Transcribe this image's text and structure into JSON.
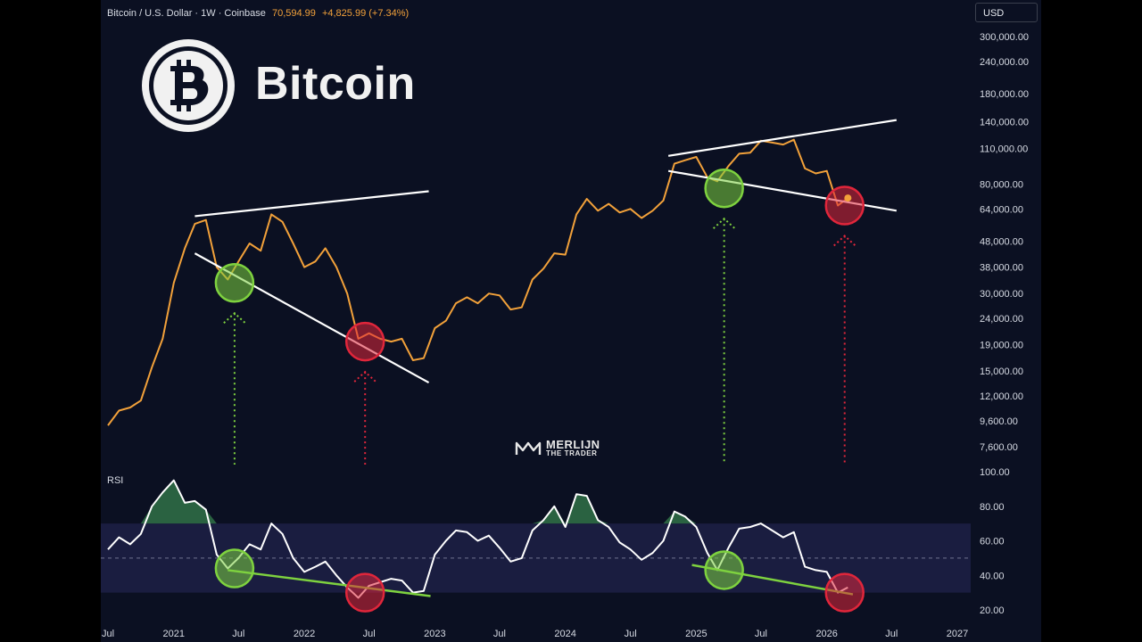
{
  "header": {
    "symbol": "Bitcoin / U.S. Dollar · 1W · Coinbase",
    "price": "70,594.99",
    "change": "+4,825.99 (+7.34%)"
  },
  "currency_button": "USD",
  "logo": {
    "name": "Bitcoin",
    "icon": "bitcoin-icon"
  },
  "watermark": {
    "line1": "MERLIJN",
    "line2": "THE TRADER"
  },
  "rsi_panel": {
    "label": "RSI"
  },
  "colors": {
    "background": "#0b1022",
    "price_line": "#f2a13a",
    "rsi_line": "#ffffff",
    "trendline": "#ffffff",
    "rsi_trendline": "#7ed23f",
    "bull_circle": "#7ed23f",
    "bear_circle": "#e0263b",
    "rsi_band": "#1d2045"
  },
  "chart_data": [
    {
      "type": "line",
      "title": "Bitcoin / U.S. Dollar · 1W · Coinbase",
      "y_scale": "log",
      "y_ticks": [
        "300,000.00",
        "240,000.00",
        "180,000.00",
        "140,000.00",
        "110,000.00",
        "80,000.00",
        "64,000.00",
        "48,000.00",
        "38,000.00",
        "30,000.00",
        "24,000.00",
        "19,000.00",
        "15,000.00",
        "12,000.00",
        "9,600.00",
        "7,600.00"
      ],
      "y_tick_values": [
        300000,
        240000,
        180000,
        140000,
        110000,
        80000,
        64000,
        48000,
        38000,
        30000,
        24000,
        19000,
        15000,
        12000,
        9600,
        7600
      ],
      "x_ticks": [
        "Jul",
        "2021",
        "Jul",
        "2022",
        "Jul",
        "2023",
        "Jul",
        "2024",
        "Jul",
        "2025",
        "Jul",
        "2026",
        "Jul",
        "2027"
      ],
      "x_tick_dates": [
        "2020-07-01",
        "2021-01-01",
        "2021-07-01",
        "2022-01-01",
        "2022-07-01",
        "2023-01-01",
        "2023-07-01",
        "2024-01-01",
        "2024-07-01",
        "2025-01-01",
        "2025-07-01",
        "2026-01-01",
        "2026-07-01",
        "2027-01-01"
      ],
      "series": [
        {
          "x": [
            "2020-07-01",
            "2020-08-01",
            "2020-09-01",
            "2020-10-01",
            "2020-11-01",
            "2020-12-01",
            "2021-01-01",
            "2021-02-01",
            "2021-03-01",
            "2021-04-01",
            "2021-05-01",
            "2021-06-01",
            "2021-07-01",
            "2021-08-01",
            "2021-09-01",
            "2021-10-01",
            "2021-11-01",
            "2021-12-01",
            "2022-01-01",
            "2022-02-01",
            "2022-03-01",
            "2022-04-01",
            "2022-05-01",
            "2022-06-01",
            "2022-07-01",
            "2022-08-01",
            "2022-09-01",
            "2022-10-01",
            "2022-11-01",
            "2022-12-01",
            "2023-01-01",
            "2023-02-01",
            "2023-03-01",
            "2023-04-01",
            "2023-05-01",
            "2023-06-01",
            "2023-07-01",
            "2023-08-01",
            "2023-09-01",
            "2023-10-01",
            "2023-11-01",
            "2023-12-01",
            "2024-01-01",
            "2024-02-01",
            "2024-03-01",
            "2024-04-01",
            "2024-05-01",
            "2024-06-01",
            "2024-07-01",
            "2024-08-01",
            "2024-09-01",
            "2024-10-01",
            "2024-11-01",
            "2024-12-01",
            "2025-01-01",
            "2025-02-01",
            "2025-03-01",
            "2025-04-01",
            "2025-05-01",
            "2025-06-01",
            "2025-07-01",
            "2025-08-01",
            "2025-09-01",
            "2025-10-01",
            "2025-11-01",
            "2025-12-01",
            "2026-01-01",
            "2026-02-01",
            "2026-03-01"
          ],
          "values": [
            9200,
            10500,
            10800,
            11500,
            15500,
            20000,
            33000,
            45000,
            56000,
            58000,
            38000,
            34000,
            40000,
            47000,
            44000,
            61000,
            57000,
            47000,
            38000,
            40000,
            45000,
            38000,
            30000,
            20000,
            21000,
            20000,
            19500,
            20000,
            16500,
            16800,
            22000,
            23500,
            27500,
            29000,
            27500,
            30000,
            29500,
            26000,
            26500,
            34000,
            37500,
            43000,
            42500,
            61000,
            70000,
            63000,
            67000,
            62000,
            64000,
            59000,
            63000,
            69000,
            96000,
            99000,
            102000,
            85000,
            82000,
            94000,
            105000,
            106000,
            118000,
            116000,
            114000,
            119000,
            92000,
            88000,
            90000,
            66000,
            70595
          ],
          "color": "#f2a13a"
        }
      ],
      "trendlines": [
        {
          "from": [
            "2021-03-01",
            60000
          ],
          "to": [
            "2022-12-15",
            75000
          ]
        },
        {
          "from": [
            "2021-03-01",
            43000
          ],
          "to": [
            "2022-12-15",
            13500
          ]
        },
        {
          "from": [
            "2024-10-15",
            103000
          ],
          "to": [
            "2026-07-15",
            142000
          ]
        },
        {
          "from": [
            "2024-10-15",
            90000
          ],
          "to": [
            "2026-07-15",
            63000
          ]
        }
      ],
      "markers": [
        {
          "kind": "bull",
          "x": "2021-06-20",
          "y": 33000
        },
        {
          "kind": "bear",
          "x": "2022-06-20",
          "y": 19500
        },
        {
          "kind": "bull",
          "x": "2025-03-20",
          "y": 77000
        },
        {
          "kind": "bear",
          "x": "2026-02-20",
          "y": 66000
        }
      ],
      "current_price": 70595
    },
    {
      "type": "line",
      "title": "RSI",
      "ylim": [
        18,
        103
      ],
      "y_ticks": [
        "100.00",
        "80.00",
        "60.00",
        "40.00",
        "20.00"
      ],
      "y_tick_values": [
        100,
        80,
        60,
        40,
        20
      ],
      "band": [
        30,
        70
      ],
      "midline": 50,
      "series": [
        {
          "x": [
            "2020-07-01",
            "2020-08-01",
            "2020-09-01",
            "2020-10-01",
            "2020-11-01",
            "2020-12-01",
            "2021-01-01",
            "2021-02-01",
            "2021-03-01",
            "2021-04-01",
            "2021-05-01",
            "2021-06-01",
            "2021-07-01",
            "2021-08-01",
            "2021-09-01",
            "2021-10-01",
            "2021-11-01",
            "2021-12-01",
            "2022-01-01",
            "2022-02-01",
            "2022-03-01",
            "2022-04-01",
            "2022-05-01",
            "2022-06-01",
            "2022-07-01",
            "2022-08-01",
            "2022-09-01",
            "2022-10-01",
            "2022-11-01",
            "2022-12-01",
            "2023-01-01",
            "2023-02-01",
            "2023-03-01",
            "2023-04-01",
            "2023-05-01",
            "2023-06-01",
            "2023-07-01",
            "2023-08-01",
            "2023-09-01",
            "2023-10-01",
            "2023-11-01",
            "2023-12-01",
            "2024-01-01",
            "2024-02-01",
            "2024-03-01",
            "2024-04-01",
            "2024-05-01",
            "2024-06-01",
            "2024-07-01",
            "2024-08-01",
            "2024-09-01",
            "2024-10-01",
            "2024-11-01",
            "2024-12-01",
            "2025-01-01",
            "2025-02-01",
            "2025-03-01",
            "2025-04-01",
            "2025-05-01",
            "2025-06-01",
            "2025-07-01",
            "2025-08-01",
            "2025-09-01",
            "2025-10-01",
            "2025-11-01",
            "2025-12-01",
            "2026-01-01",
            "2026-02-01",
            "2026-03-01"
          ],
          "values": [
            55,
            62,
            58,
            64,
            80,
            88,
            95,
            82,
            83,
            78,
            52,
            44,
            50,
            58,
            55,
            70,
            64,
            50,
            42,
            45,
            48,
            40,
            33,
            27,
            34,
            36,
            38,
            37,
            30,
            31,
            52,
            60,
            66,
            65,
            60,
            63,
            56,
            48,
            50,
            66,
            72,
            80,
            68,
            87,
            86,
            72,
            68,
            59,
            55,
            49,
            53,
            60,
            77,
            74,
            68,
            53,
            43,
            56,
            67,
            68,
            70,
            66,
            62,
            65,
            45,
            43,
            42,
            30,
            33
          ],
          "color": "#ffffff"
        }
      ],
      "trendlines": [
        {
          "from": [
            "2021-06-01",
            43
          ],
          "to": [
            "2022-12-20",
            28
          ]
        },
        {
          "from": [
            "2024-12-20",
            46
          ],
          "to": [
            "2026-03-15",
            29
          ]
        }
      ],
      "markers": [
        {
          "kind": "bull",
          "x": "2021-06-20",
          "y": 44
        },
        {
          "kind": "bear",
          "x": "2022-06-20",
          "y": 30
        },
        {
          "kind": "bull",
          "x": "2025-03-20",
          "y": 43
        },
        {
          "kind": "bear",
          "x": "2026-02-20",
          "y": 30
        }
      ]
    }
  ]
}
